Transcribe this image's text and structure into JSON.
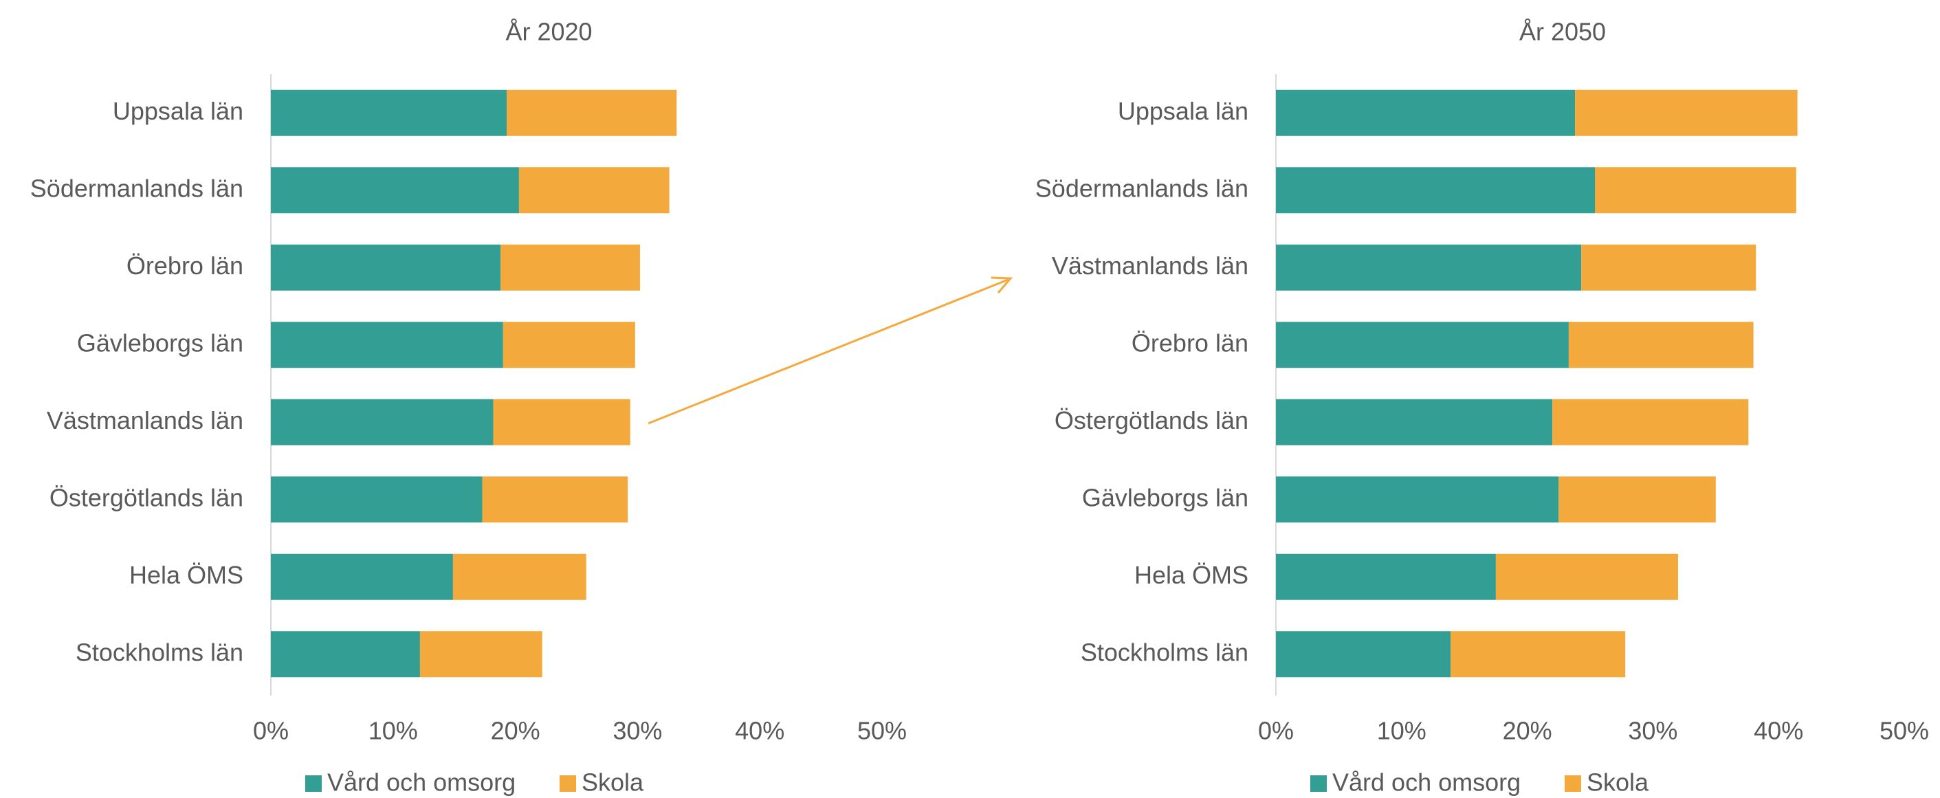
{
  "chart_data": [
    {
      "type": "bar",
      "orientation": "horizontal",
      "stacked": true,
      "title": "År 2020",
      "categories": [
        "Uppsala län",
        "Södermanlands län",
        "Örebro län",
        "Gävleborgs län",
        "Västmanlands län",
        "Östergötlands län",
        "Hela ÖMS",
        "Stockholms län"
      ],
      "series": [
        {
          "name": "Vård och omsorg",
          "color": "#339e94",
          "values": [
            19.3,
            20.3,
            18.8,
            19.0,
            18.2,
            17.3,
            14.9,
            12.2
          ]
        },
        {
          "name": "Skola",
          "color": "#f4a93c",
          "values": [
            13.9,
            12.3,
            11.4,
            10.8,
            11.2,
            11.9,
            10.9,
            10.0
          ]
        }
      ],
      "xlim": [
        0,
        50
      ],
      "xticks": [
        {
          "value": 0,
          "label": "0%"
        },
        {
          "value": 10,
          "label": "10%"
        },
        {
          "value": 20,
          "label": "20%"
        },
        {
          "value": 30,
          "label": "30%"
        },
        {
          "value": 40,
          "label": "40%"
        },
        {
          "value": 50,
          "label": "50%"
        }
      ],
      "legend": "bottom"
    },
    {
      "type": "bar",
      "orientation": "horizontal",
      "stacked": true,
      "title": "År 2050",
      "categories": [
        "Uppsala län",
        "Södermanlands län",
        "Västmanlands län",
        "Örebro län",
        "Östergötlands län",
        "Gävleborgs län",
        "Hela ÖMS",
        "Stockholms län"
      ],
      "series": [
        {
          "name": "Vård och omsorg",
          "color": "#339e94",
          "values": [
            23.8,
            25.4,
            24.3,
            23.3,
            22.0,
            22.5,
            17.5,
            13.9
          ]
        },
        {
          "name": "Skola",
          "color": "#f4a93c",
          "values": [
            17.7,
            16.0,
            13.9,
            14.7,
            15.6,
            12.5,
            14.5,
            13.9
          ]
        }
      ],
      "xlim": [
        0,
        50
      ],
      "xticks": [
        {
          "value": 0,
          "label": "0%"
        },
        {
          "value": 10,
          "label": "10%"
        },
        {
          "value": 20,
          "label": "20%"
        },
        {
          "value": 30,
          "label": "30%"
        },
        {
          "value": 40,
          "label": "40%"
        },
        {
          "value": 50,
          "label": "50%"
        }
      ],
      "legend": "bottom"
    }
  ]
}
